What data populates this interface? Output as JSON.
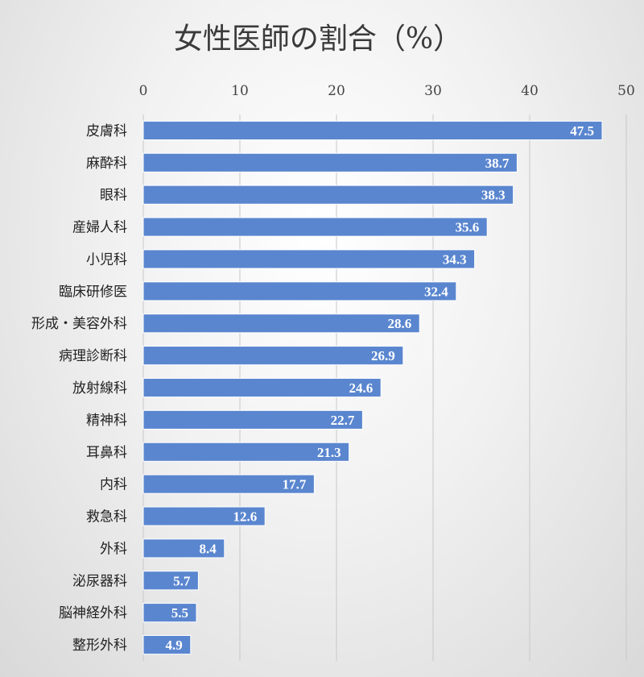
{
  "chart_data": {
    "type": "bar",
    "orientation": "horizontal",
    "title": "女性医師の割合（%）",
    "categories": [
      "皮膚科",
      "麻酔科",
      "眼科",
      "産婦人科",
      "小児科",
      "臨床研修医",
      "形成・美容外科",
      "病理診断科",
      "放射線科",
      "精神科",
      "耳鼻科",
      "内科",
      "救急科",
      "外科",
      "泌尿器科",
      "脳神経外科",
      "整形外科"
    ],
    "values": [
      47.5,
      38.7,
      38.3,
      35.6,
      34.3,
      32.4,
      28.6,
      26.9,
      24.6,
      22.7,
      21.3,
      17.7,
      12.6,
      8.4,
      5.7,
      5.5,
      4.9
    ],
    "xticks": [
      "0",
      "10",
      "20",
      "30",
      "40",
      "50"
    ],
    "xlim": [
      0,
      50
    ],
    "axis_position": "top",
    "grid": true,
    "bar_color": "#5a86cf"
  }
}
